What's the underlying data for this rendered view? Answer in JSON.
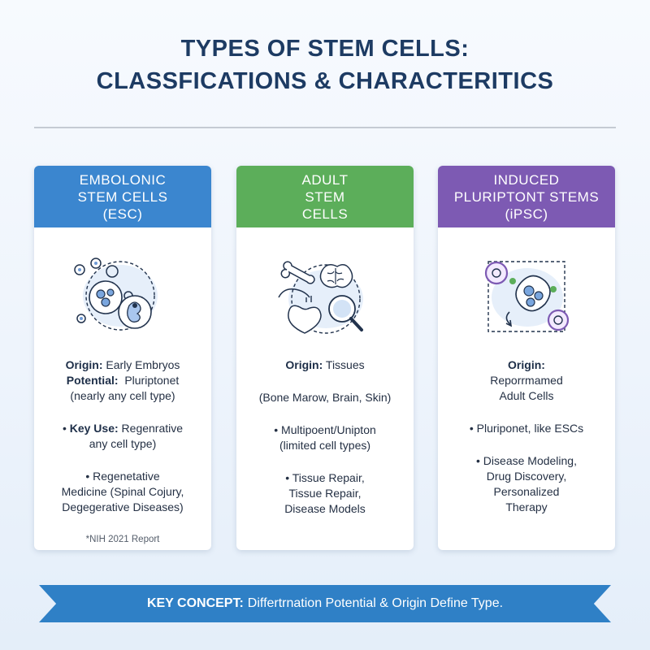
{
  "title": {
    "line1": "TYPES OF STEM CELLS:",
    "line2": "CLASSFICATIONS & CHARACTERITICS"
  },
  "cards": [
    {
      "accent": "#3b86cf",
      "header": [
        "EMBOLONIC",
        "STEM CELLS",
        "(ESC)"
      ],
      "icon": "embryo-cells-icon",
      "origin_label": "Origin:",
      "origin_value": "Early Embryos",
      "potential_label": "Potential:",
      "potential_value": "Pluriptonet",
      "potential_note": "(nearly any cell type)",
      "key_use_label": "Key Use:",
      "key_use_value": "Regenrative",
      "key_use_note": "any cell type)",
      "bullet_lines": [
        "• Regenetative",
        "Medicine (Spinal Cojury,",
        "Degegerative Diseases)"
      ],
      "footnote": "*NIH 2021 Report"
    },
    {
      "accent": "#5cae5a",
      "header": [
        "ADULT",
        "STEM",
        "CELLS"
      ],
      "icon": "adult-tissues-icon",
      "origin_label": "Origin:",
      "origin_value": "Tissues",
      "tissues_note": "(Bone Marow, Brain, Skin)",
      "potency_lines": [
        "• Multipoent/Unipton",
        "(limited cell types)"
      ],
      "use_lines": [
        "• Tissue Repair,",
        "Tissue Repair,",
        "Disease Models"
      ]
    },
    {
      "accent": "#7d5ab3",
      "header": [
        "INDUCED",
        "PLURIPTONT STEMS",
        "(iPSC)"
      ],
      "icon": "reprogramming-cycle-icon",
      "origin_label": "Origin:",
      "origin_lines": [
        "Reporr​mamed",
        "Adult Cells"
      ],
      "potency_line": "• Pluriponet, like ESCs",
      "use_lines": [
        "• Disease Modeling,",
        "Drug Discovery,",
        "Personalized",
        "Therapy"
      ]
    }
  ],
  "banner": {
    "label": "KEY CONCEPT:",
    "text": "Differtrnation Potential & Origin Define Type."
  }
}
